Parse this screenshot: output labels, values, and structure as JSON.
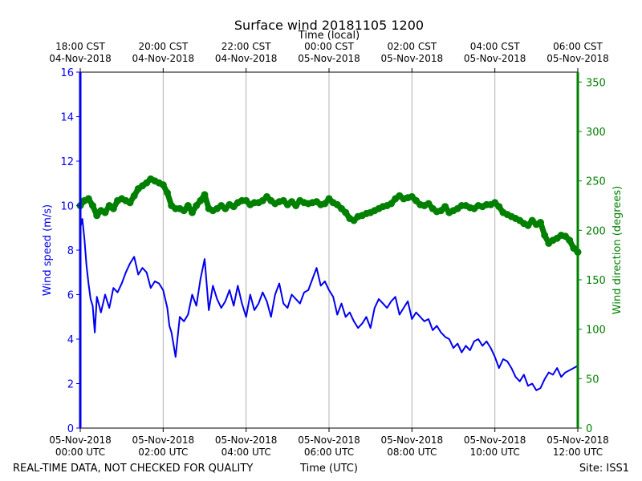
{
  "chart_data": {
    "type": "line",
    "title": "Surface wind 20181105 1200",
    "top_axis_label": "Time (local)",
    "xlabel": "Time (UTC)",
    "ylabel_left": "Wind speed (m/s)",
    "ylabel_right": "Wind direction (degrees)",
    "footer_left": "REAL-TIME DATA, NOT CHECKED FOR QUALITY",
    "footer_right": "Site: ISS1",
    "x_unit": "hours since 05-Nov-2018 00:00 UTC",
    "xlim": [
      0,
      12
    ],
    "ylim_left": [
      0,
      16
    ],
    "ylim_right": [
      0,
      360
    ],
    "grid": "vertical",
    "legend": "none",
    "colors": {
      "speed": "#0000ee",
      "direction": "#008000"
    },
    "x_ticks_bottom": [
      {
        "x": 0,
        "line1": "05-Nov-2018",
        "line2": "00:00 UTC"
      },
      {
        "x": 2,
        "line1": "05-Nov-2018",
        "line2": "02:00 UTC"
      },
      {
        "x": 4,
        "line1": "05-Nov-2018",
        "line2": "04:00 UTC"
      },
      {
        "x": 6,
        "line1": "05-Nov-2018",
        "line2": "06:00 UTC"
      },
      {
        "x": 8,
        "line1": "05-Nov-2018",
        "line2": "08:00 UTC"
      },
      {
        "x": 10,
        "line1": "05-Nov-2018",
        "line2": "10:00 UTC"
      },
      {
        "x": 12,
        "line1": "05-Nov-2018",
        "line2": "12:00 UTC"
      }
    ],
    "x_ticks_top": [
      {
        "x": 0,
        "line1": "18:00 CST",
        "line2": "04-Nov-2018"
      },
      {
        "x": 2,
        "line1": "20:00 CST",
        "line2": "04-Nov-2018"
      },
      {
        "x": 4,
        "line1": "22:00 CST",
        "line2": "04-Nov-2018"
      },
      {
        "x": 6,
        "line1": "00:00 CST",
        "line2": "05-Nov-2018"
      },
      {
        "x": 8,
        "line1": "02:00 CST",
        "line2": "05-Nov-2018"
      },
      {
        "x": 10,
        "line1": "04:00 CST",
        "line2": "05-Nov-2018"
      },
      {
        "x": 12,
        "line1": "06:00 CST",
        "line2": "05-Nov-2018"
      }
    ],
    "y_ticks_left": [
      0,
      2,
      4,
      6,
      8,
      10,
      12,
      14,
      16
    ],
    "y_ticks_right": [
      0,
      50,
      100,
      150,
      200,
      250,
      300,
      350
    ],
    "series": [
      {
        "key": "speed",
        "axis": "left",
        "x": [
          0,
          0.05,
          0.1,
          0.15,
          0.2,
          0.25,
          0.3,
          0.35,
          0.4,
          0.5,
          0.6,
          0.7,
          0.8,
          0.9,
          1.0,
          1.1,
          1.2,
          1.3,
          1.4,
          1.5,
          1.6,
          1.7,
          1.8,
          1.9,
          2.0,
          2.1,
          2.15,
          2.2,
          2.3,
          2.4,
          2.5,
          2.6,
          2.7,
          2.8,
          2.9,
          3.0,
          3.1,
          3.2,
          3.3,
          3.4,
          3.5,
          3.6,
          3.7,
          3.8,
          3.9,
          4.0,
          4.1,
          4.2,
          4.3,
          4.4,
          4.5,
          4.6,
          4.7,
          4.8,
          4.9,
          5.0,
          5.1,
          5.2,
          5.3,
          5.4,
          5.5,
          5.6,
          5.7,
          5.8,
          5.9,
          6.0,
          6.1,
          6.2,
          6.3,
          6.4,
          6.5,
          6.6,
          6.7,
          6.8,
          6.9,
          7.0,
          7.1,
          7.2,
          7.3,
          7.4,
          7.5,
          7.6,
          7.7,
          7.8,
          7.9,
          8.0,
          8.1,
          8.2,
          8.3,
          8.4,
          8.5,
          8.6,
          8.7,
          8.8,
          8.9,
          9.0,
          9.1,
          9.2,
          9.3,
          9.4,
          9.5,
          9.6,
          9.7,
          9.8,
          9.9,
          10.0,
          10.1,
          10.2,
          10.3,
          10.4,
          10.5,
          10.6,
          10.7,
          10.8,
          10.9,
          11.0,
          11.1,
          11.2,
          11.3,
          11.4,
          11.5,
          11.6,
          11.7,
          11.8,
          11.9,
          12.0
        ],
        "values": [
          9.0,
          9.4,
          8.5,
          7.3,
          6.5,
          5.8,
          5.5,
          4.3,
          5.9,
          5.2,
          6.0,
          5.4,
          6.3,
          6.1,
          6.5,
          7.0,
          7.4,
          7.7,
          6.9,
          7.2,
          7.0,
          6.3,
          6.6,
          6.5,
          6.2,
          5.4,
          4.6,
          4.3,
          3.2,
          5.0,
          4.8,
          5.1,
          6.0,
          5.5,
          6.7,
          7.6,
          5.3,
          6.4,
          5.8,
          5.4,
          5.7,
          6.2,
          5.5,
          6.4,
          5.6,
          5.0,
          6.0,
          5.3,
          5.6,
          6.1,
          5.7,
          5.0,
          6.0,
          6.5,
          5.6,
          5.4,
          6.0,
          5.8,
          5.6,
          6.1,
          6.2,
          6.7,
          7.2,
          6.4,
          6.6,
          6.2,
          5.9,
          5.1,
          5.6,
          5.0,
          5.2,
          4.8,
          4.5,
          4.7,
          5.0,
          4.5,
          5.4,
          5.8,
          5.6,
          5.4,
          5.7,
          5.9,
          5.1,
          5.4,
          5.7,
          4.9,
          5.2,
          5.0,
          4.8,
          4.9,
          4.4,
          4.6,
          4.3,
          4.1,
          4.0,
          3.6,
          3.8,
          3.4,
          3.7,
          3.5,
          3.9,
          4.0,
          3.7,
          3.9,
          3.6,
          3.2,
          2.7,
          3.1,
          3.0,
          2.7,
          2.3,
          2.1,
          2.4,
          1.9,
          2.0,
          1.7,
          1.8,
          2.2,
          2.5,
          2.4,
          2.7,
          2.3,
          2.5,
          2.6,
          2.7,
          2.8
        ],
        "marker": "line"
      },
      {
        "key": "direction",
        "axis": "right",
        "x": [
          0,
          0.1,
          0.2,
          0.3,
          0.4,
          0.5,
          0.6,
          0.7,
          0.8,
          0.9,
          1.0,
          1.1,
          1.2,
          1.3,
          1.4,
          1.5,
          1.6,
          1.7,
          1.8,
          1.9,
          2.0,
          2.1,
          2.2,
          2.3,
          2.4,
          2.5,
          2.6,
          2.7,
          2.8,
          2.9,
          3.0,
          3.1,
          3.2,
          3.3,
          3.4,
          3.5,
          3.6,
          3.7,
          3.8,
          3.9,
          4.0,
          4.1,
          4.2,
          4.3,
          4.4,
          4.5,
          4.6,
          4.7,
          4.8,
          4.9,
          5.0,
          5.1,
          5.2,
          5.3,
          5.4,
          5.5,
          5.6,
          5.7,
          5.8,
          5.9,
          6.0,
          6.1,
          6.2,
          6.3,
          6.4,
          6.5,
          6.6,
          6.7,
          6.8,
          6.9,
          7.0,
          7.1,
          7.2,
          7.3,
          7.4,
          7.5,
          7.6,
          7.7,
          7.8,
          7.9,
          8.0,
          8.1,
          8.2,
          8.3,
          8.4,
          8.5,
          8.6,
          8.7,
          8.8,
          8.9,
          9.0,
          9.1,
          9.2,
          9.3,
          9.4,
          9.5,
          9.6,
          9.7,
          9.8,
          9.9,
          10.0,
          10.1,
          10.2,
          10.3,
          10.4,
          10.5,
          10.6,
          10.7,
          10.8,
          10.9,
          11.0,
          11.1,
          11.2,
          11.3,
          11.4,
          11.5,
          11.6,
          11.7,
          11.8,
          11.9,
          12.0
        ],
        "values": [
          225,
          230,
          232,
          225,
          215,
          220,
          218,
          225,
          222,
          230,
          232,
          230,
          228,
          235,
          242,
          245,
          248,
          252,
          250,
          248,
          246,
          238,
          225,
          222,
          222,
          220,
          225,
          218,
          225,
          230,
          236,
          222,
          220,
          222,
          225,
          222,
          226,
          224,
          228,
          230,
          230,
          226,
          228,
          228,
          230,
          234,
          230,
          227,
          229,
          230,
          226,
          229,
          225,
          230,
          228,
          227,
          228,
          229,
          226,
          227,
          232,
          228,
          226,
          222,
          218,
          212,
          210,
          214,
          215,
          217,
          218,
          220,
          222,
          224,
          225,
          227,
          232,
          235,
          232,
          233,
          234,
          230,
          226,
          225,
          227,
          222,
          219,
          220,
          224,
          218,
          220,
          222,
          225,
          225,
          223,
          222,
          225,
          224,
          226,
          226,
          228,
          224,
          218,
          216,
          214,
          212,
          210,
          207,
          205,
          210,
          206,
          208,
          195,
          187,
          190,
          192,
          195,
          194,
          190,
          182,
          178
        ],
        "marker": "dot"
      }
    ]
  }
}
